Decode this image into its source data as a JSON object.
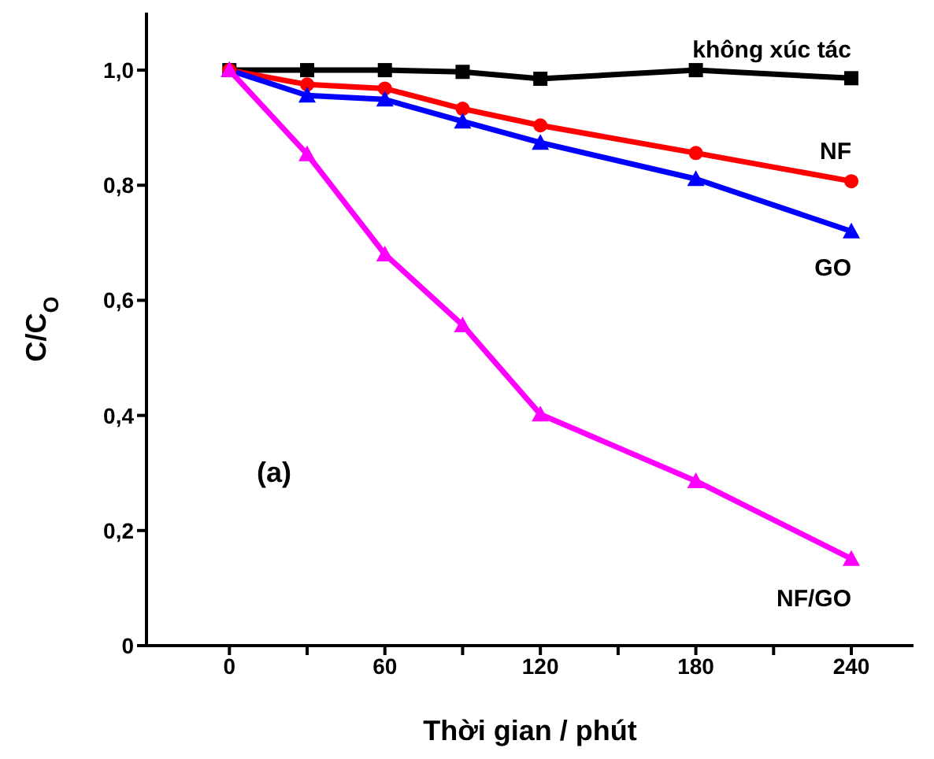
{
  "chart_data": {
    "type": "line",
    "xlabel": "Thời gian / phút",
    "ylabel": "C/C$_{O}$",
    "x": [
      0,
      30,
      60,
      90,
      120,
      180,
      240
    ],
    "series": [
      {
        "name": "không xúc tác",
        "color": "#000000",
        "marker": "square",
        "values": [
          1.0,
          1.0,
          1.0,
          0.997,
          0.985,
          1.0,
          0.986
        ]
      },
      {
        "name": "NF",
        "color": "#ff0000",
        "marker": "circle",
        "values": [
          1.0,
          0.975,
          0.968,
          0.933,
          0.904,
          0.856,
          0.807
        ]
      },
      {
        "name": "GO",
        "color": "#0000ff",
        "marker": "triangle",
        "values": [
          1.0,
          0.956,
          0.949,
          0.911,
          0.874,
          0.811,
          0.72
        ]
      },
      {
        "name": "NF/GO",
        "color": "#ff00ff",
        "marker": "triangle",
        "values": [
          1.0,
          0.854,
          0.68,
          0.557,
          0.402,
          0.286,
          0.151
        ]
      }
    ],
    "xlim": [
      -32,
      264
    ],
    "xticks": [
      0,
      {
        "value": 30,
        "label": null
      },
      60,
      {
        "value": 90,
        "label": null
      },
      120,
      {
        "value": 150,
        "label": null
      },
      180,
      {
        "value": 210,
        "label": null
      },
      240
    ],
    "ylim": [
      0,
      1.1
    ],
    "yticks": [
      {
        "value": 0,
        "label": "0"
      },
      {
        "value": 0.2,
        "label": "0,2"
      },
      {
        "value": 0.4,
        "label": "0,4"
      },
      {
        "value": 0.6,
        "label": "0,6"
      },
      {
        "value": 0.8,
        "label": "0,8"
      },
      {
        "value": 1.0,
        "label": "1,0"
      }
    ],
    "annotations": [
      "(a)"
    ],
    "grid": false,
    "legend": false,
    "line_style": "solid"
  }
}
